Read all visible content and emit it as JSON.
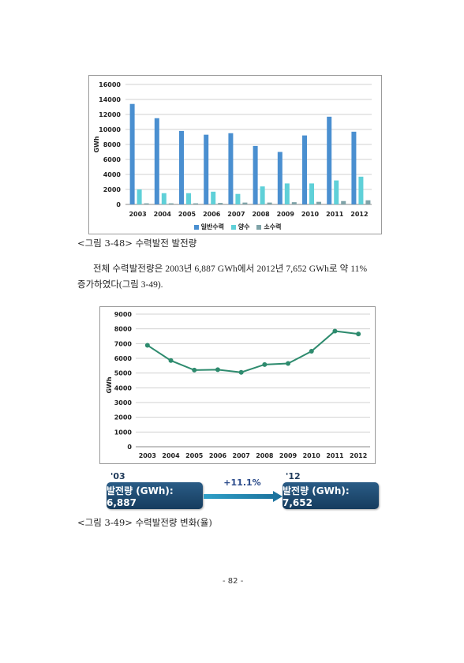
{
  "chart_data": [
    {
      "type": "bar",
      "ylabel": "GWh",
      "ylim": [
        0,
        16000
      ],
      "yticks": [
        0,
        2000,
        4000,
        6000,
        8000,
        10000,
        12000,
        14000,
        16000
      ],
      "grid": true,
      "legend": "bottom",
      "categories": [
        "2003",
        "2004",
        "2005",
        "2006",
        "2007",
        "2008",
        "2009",
        "2010",
        "2011",
        "2012"
      ],
      "series": [
        {
          "name": "일반수력",
          "color": "#4a8fd0",
          "values": [
            13400,
            11500,
            9800,
            9300,
            9500,
            7800,
            7000,
            9200,
            11700,
            9700
          ]
        },
        {
          "name": "양수",
          "color": "#5fd0d8",
          "values": [
            2000,
            1500,
            1500,
            1700,
            1400,
            2400,
            2800,
            2800,
            3200,
            3700
          ]
        },
        {
          "name": "소수력",
          "color": "#7fa3a8",
          "values": [
            150,
            150,
            150,
            200,
            250,
            250,
            300,
            350,
            450,
            550
          ]
        }
      ]
    },
    {
      "type": "line",
      "ylabel": "GWh",
      "ylim": [
        0,
        9000
      ],
      "yticks": [
        0,
        1000,
        2000,
        3000,
        4000,
        5000,
        6000,
        7000,
        8000,
        9000
      ],
      "grid": true,
      "categories": [
        "2003",
        "2004",
        "2005",
        "2006",
        "2007",
        "2008",
        "2009",
        "2010",
        "2011",
        "2012"
      ],
      "series": [
        {
          "color": "#2e8b6e",
          "values": [
            6887,
            5850,
            5200,
            5230,
            5050,
            5580,
            5650,
            6480,
            7850,
            7652
          ]
        }
      ]
    }
  ],
  "caption1": "<그림 3-48> 수력발전 발전량",
  "paragraph": {
    "line1": "전체 수력발전량은 2003년 6,887 GWh에서 2012년 7,652 GWh로 약 11%",
    "line2": "증가하였다(그림 3-49)."
  },
  "summary": {
    "start_year": "'03",
    "end_year": "'12",
    "start_box": "발전량 (GWh): 6,887",
    "end_box": "발전량 (GWh): 7,652",
    "change": "+11.1%"
  },
  "caption2": "<그림 3-49> 수력발전량 변화(율)",
  "page_number": "- 82 -"
}
